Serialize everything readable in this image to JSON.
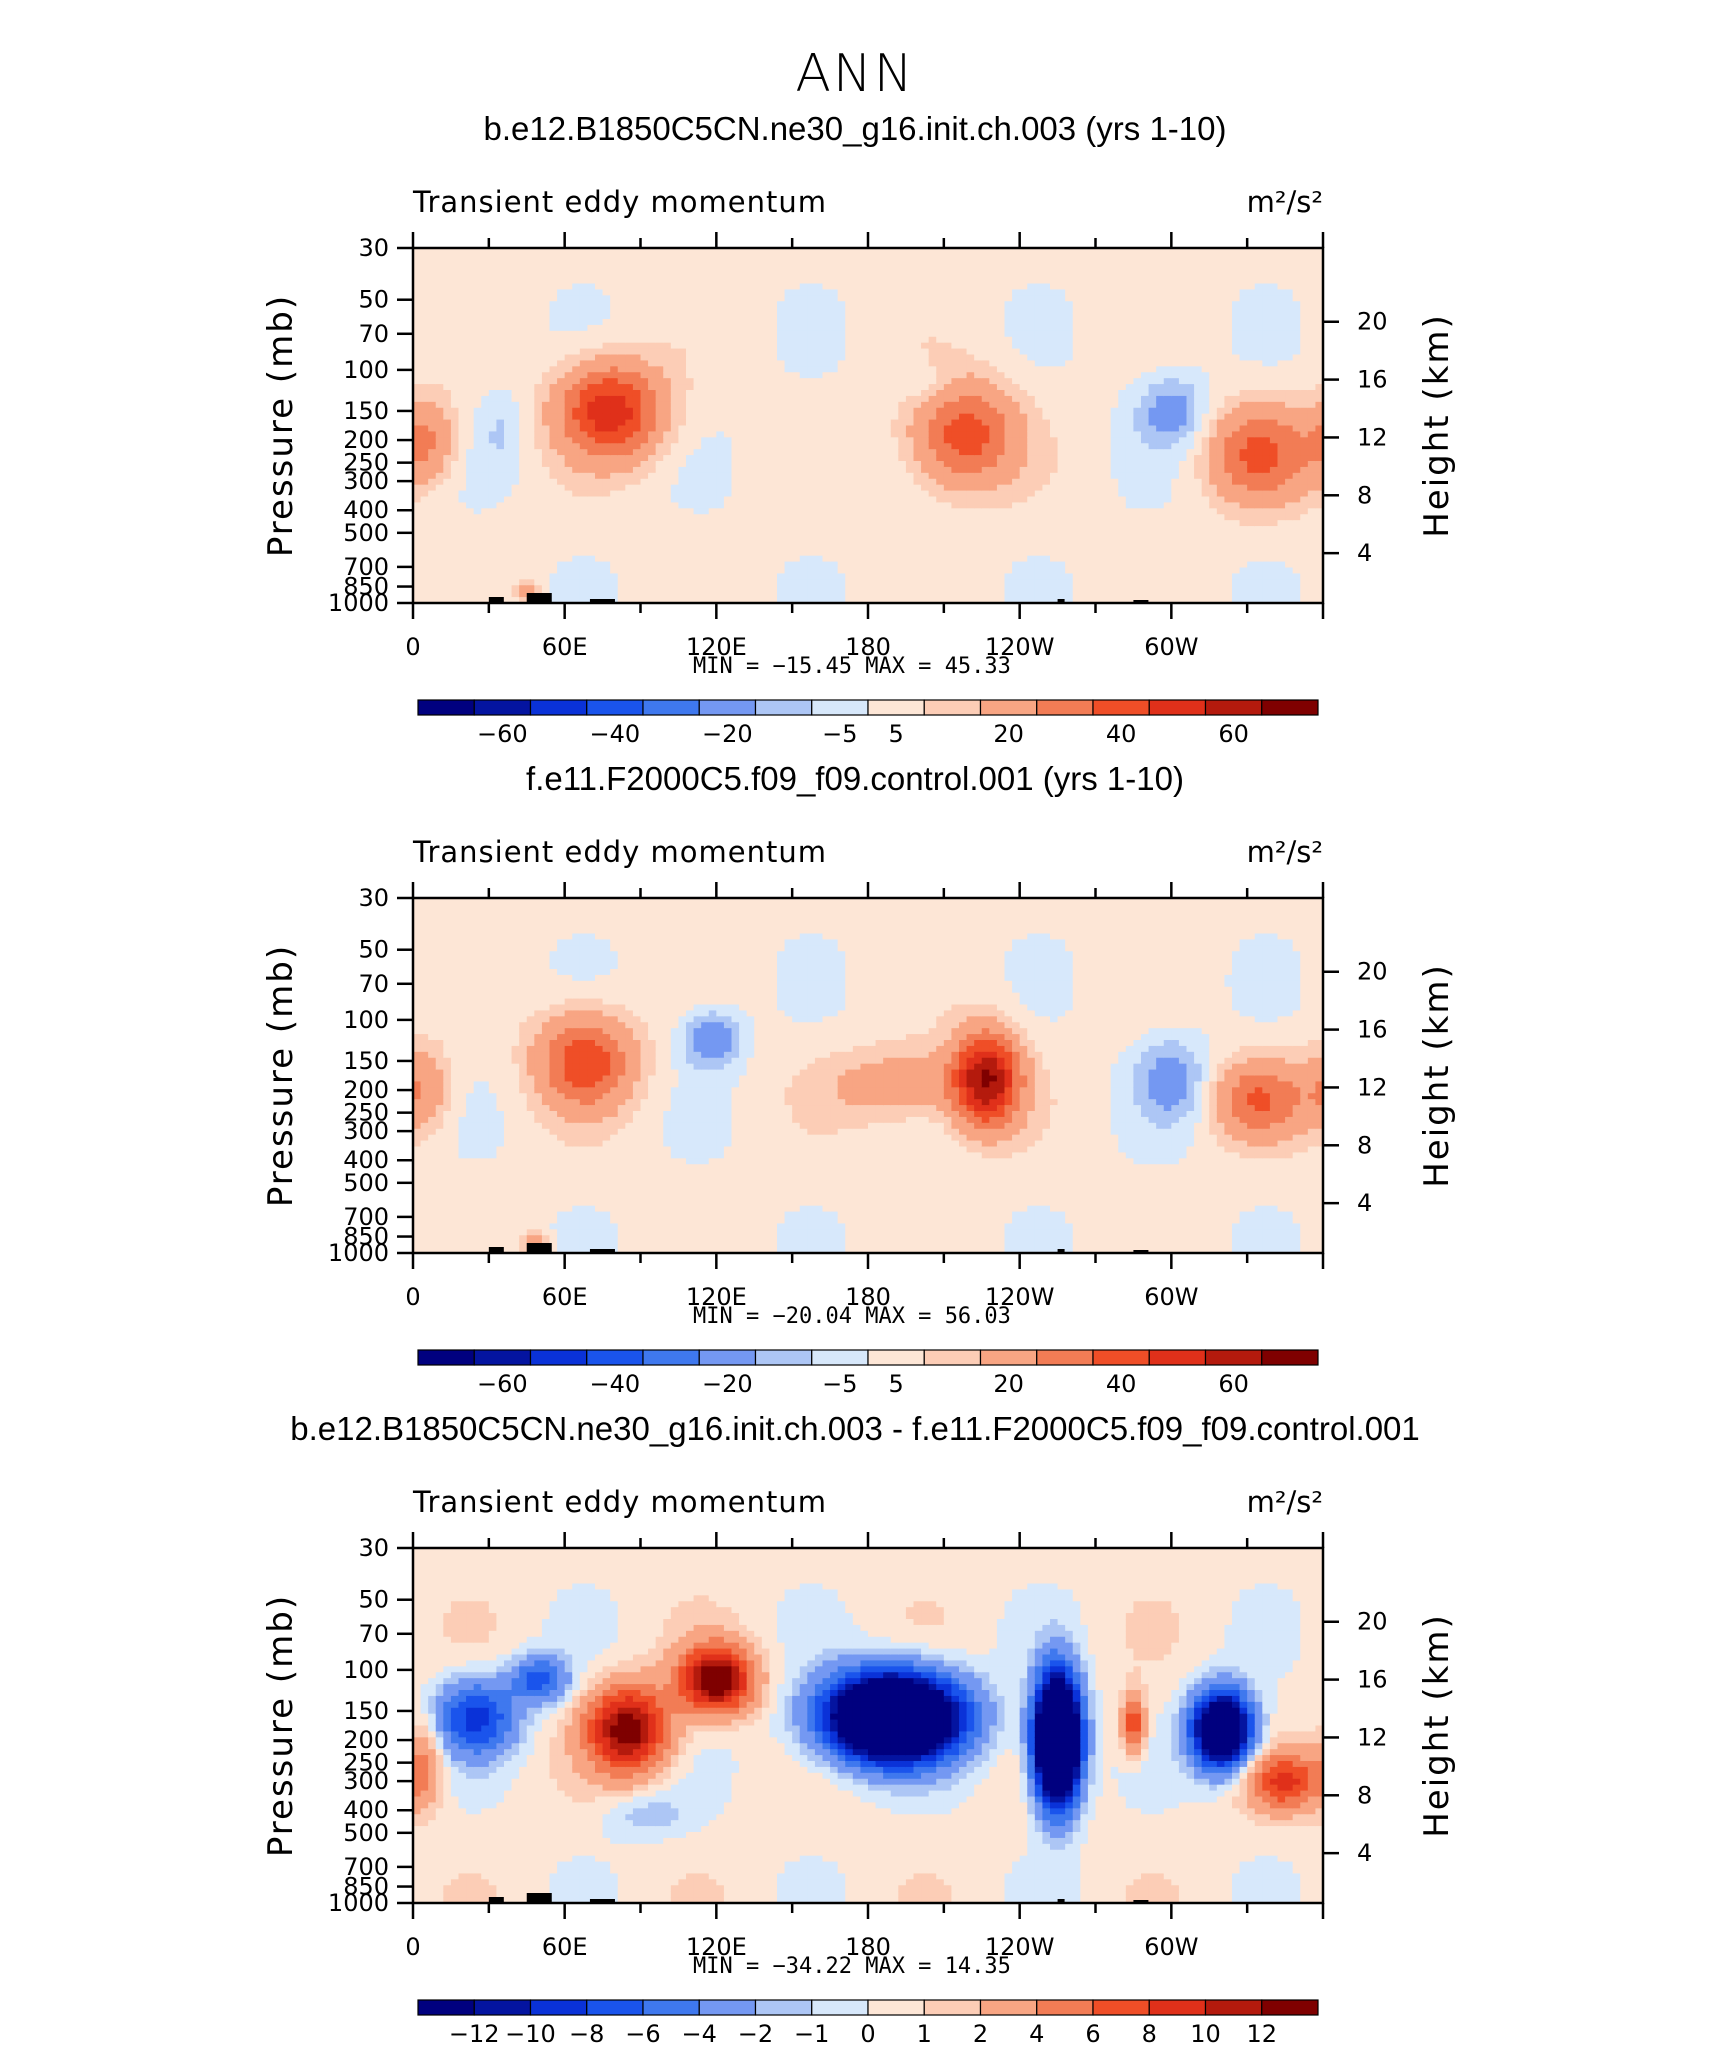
{
  "page_title": "ANN",
  "chart_data": [
    {
      "type": "heatmap",
      "title": "b.e12.B1850C5CN.ne30_g16.init.ch.003 (yrs 1-10)",
      "variable": "Transient eddy momentum",
      "units": "m²/s²",
      "xlabel": "",
      "ylabel": "Pressure (mb)",
      "y2label": "Height (km)",
      "x_ticks": [
        "0",
        "60E",
        "120E",
        "180",
        "120W",
        "60W"
      ],
      "y_ticks": [
        30,
        50,
        70,
        100,
        150,
        200,
        250,
        300,
        400,
        500,
        700,
        850,
        1000
      ],
      "y2_ticks": [
        20,
        16,
        12,
        8,
        4
      ],
      "min_label": "MIN",
      "min_value": "−15.45",
      "max_label": "MAX",
      "max_value": "45.33",
      "colorbar_labels": [
        "−60",
        "−40",
        "−20",
        "−5",
        "5",
        "20",
        "40",
        "60"
      ],
      "colorbar_colors": [
        "#00007f",
        "#0414a0",
        "#0a32d8",
        "#1a54ec",
        "#3f78ee",
        "#7498f2",
        "#adc6f5",
        "#d7e8fb",
        "#fde6d6",
        "#fccdb6",
        "#f8a583",
        "#f27c55",
        "#ef4e27",
        "#e0301a",
        "#b41a0d",
        "#7f0000"
      ],
      "features": [
        {
          "lon": 78,
          "p": 150,
          "value": 45,
          "sx": 14,
          "sz": 1.0
        },
        {
          "lon": 218,
          "p": 190,
          "value": 35,
          "sx": 14,
          "sz": 1.1
        },
        {
          "lon": 335,
          "p": 230,
          "value": 30,
          "sx": 14,
          "sz": 1.0
        },
        {
          "lon": 5,
          "p": 200,
          "value": 20,
          "sx": 8,
          "sz": 0.9
        },
        {
          "lon": 300,
          "p": 150,
          "value": -15,
          "sx": 10,
          "sz": 0.8
        },
        {
          "lon": 35,
          "p": 180,
          "value": -6,
          "sx": 6,
          "sz": 0.9
        },
        {
          "lon": 205,
          "p": 120,
          "value": -6,
          "sx": 8,
          "sz": 0.5
        },
        {
          "lon": 46,
          "p": 900,
          "value": 18,
          "sx": 3,
          "sz": 0.25
        }
      ]
    },
    {
      "type": "heatmap",
      "title": "f.e11.F2000C5.f09_f09.control.001 (yrs 1-10)",
      "variable": "Transient eddy momentum",
      "units": "m²/s²",
      "xlabel": "",
      "ylabel": "Pressure (mb)",
      "y2label": "Height (km)",
      "x_ticks": [
        "0",
        "60E",
        "120E",
        "180",
        "120W",
        "60W"
      ],
      "y_ticks": [
        30,
        50,
        70,
        100,
        150,
        200,
        250,
        300,
        400,
        500,
        700,
        850,
        1000
      ],
      "y2_ticks": [
        20,
        16,
        12,
        8,
        4
      ],
      "min_label": "MIN",
      "min_value": "−20.04",
      "max_label": "MAX",
      "max_value": "56.03",
      "colorbar_labels": [
        "−60",
        "−40",
        "−20",
        "−5",
        "5",
        "20",
        "40",
        "60"
      ],
      "colorbar_colors": [
        "#00007f",
        "#0414a0",
        "#0a32d8",
        "#1a54ec",
        "#3f78ee",
        "#7498f2",
        "#adc6f5",
        "#d7e8fb",
        "#fde6d6",
        "#fccdb6",
        "#f8a583",
        "#f27c55",
        "#ef4e27",
        "#e0301a",
        "#b41a0d",
        "#7f0000"
      ],
      "features": [
        {
          "lon": 68,
          "p": 150,
          "value": 36,
          "sx": 13,
          "sz": 1.0
        },
        {
          "lon": 118,
          "p": 120,
          "value": -20,
          "sx": 8,
          "sz": 0.6
        },
        {
          "lon": 195,
          "p": 190,
          "value": 15,
          "sx": 22,
          "sz": 0.8
        },
        {
          "lon": 227,
          "p": 180,
          "value": 56,
          "sx": 9,
          "sz": 1.0
        },
        {
          "lon": 300,
          "p": 180,
          "value": -15,
          "sx": 10,
          "sz": 0.9
        },
        {
          "lon": 335,
          "p": 220,
          "value": 28,
          "sx": 12,
          "sz": 0.8
        },
        {
          "lon": 3,
          "p": 200,
          "value": 18,
          "sx": 8,
          "sz": 0.9
        },
        {
          "lon": 48,
          "p": 900,
          "value": 18,
          "sx": 3,
          "sz": 0.25
        }
      ]
    },
    {
      "type": "heatmap",
      "title": "b.e12.B1850C5CN.ne30_g16.init.ch.003 - f.e11.F2000C5.f09_f09.control.001",
      "variable": "Transient eddy momentum",
      "units": "m²/s²",
      "xlabel": "",
      "ylabel": "Pressure (mb)",
      "y2label": "Height (km)",
      "x_ticks": [
        "0",
        "60E",
        "120E",
        "180",
        "120W",
        "60W"
      ],
      "y_ticks": [
        30,
        50,
        70,
        100,
        150,
        200,
        250,
        300,
        400,
        500,
        700,
        850,
        1000
      ],
      "y2_ticks": [
        20,
        16,
        12,
        8,
        4
      ],
      "min_label": "MIN",
      "min_value": "−34.22",
      "max_label": "MAX",
      "max_value": "14.35",
      "colorbar_labels": [
        "−12",
        "−10",
        "−8",
        "−6",
        "−4",
        "−2",
        "−1",
        "0",
        "1",
        "2",
        "4",
        "6",
        "8",
        "10",
        "12"
      ],
      "colorbar_colors": [
        "#00007f",
        "#0414a0",
        "#0a32d8",
        "#1a54ec",
        "#3f78ee",
        "#7498f2",
        "#adc6f5",
        "#d7e8fb",
        "#fde6d6",
        "#fccdb6",
        "#f8a583",
        "#f27c55",
        "#ef4e27",
        "#e0301a",
        "#b41a0d",
        "#7f0000"
      ],
      "features": [
        {
          "lon": 25,
          "p": 160,
          "value": -9,
          "sx": 11,
          "sz": 0.8
        },
        {
          "lon": 50,
          "p": 110,
          "value": -7,
          "sx": 8,
          "sz": 0.5
        },
        {
          "lon": 85,
          "p": 180,
          "value": 13,
          "sx": 11,
          "sz": 0.9
        },
        {
          "lon": 120,
          "p": 110,
          "value": 14,
          "sx": 10,
          "sz": 0.7
        },
        {
          "lon": 190,
          "p": 160,
          "value": -30,
          "sx": 18,
          "sz": 0.9
        },
        {
          "lon": 255,
          "p": 200,
          "value": -34,
          "sx": 6,
          "sz": 1.3
        },
        {
          "lon": 285,
          "p": 170,
          "value": 8,
          "sx": 3,
          "sz": 0.6
        },
        {
          "lon": 320,
          "p": 180,
          "value": -22,
          "sx": 8,
          "sz": 0.8
        },
        {
          "lon": 345,
          "p": 300,
          "value": 8,
          "sx": 10,
          "sz": 0.6
        },
        {
          "lon": 5,
          "p": 250,
          "value": 4,
          "sx": 5,
          "sz": 1.0
        },
        {
          "lon": 92,
          "p": 420,
          "value": -2,
          "sx": 12,
          "sz": 0.5
        }
      ]
    }
  ]
}
